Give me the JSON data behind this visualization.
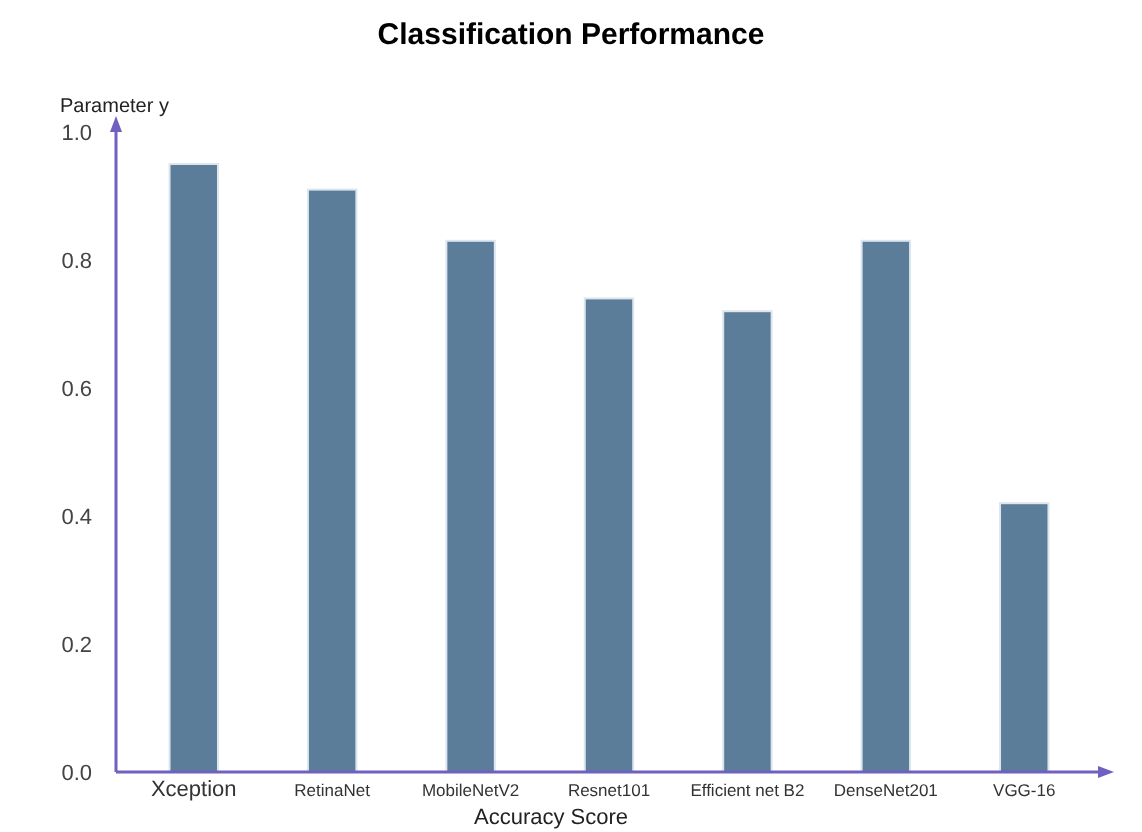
{
  "chart_data": {
    "type": "bar",
    "title": "Classification Performance",
    "xlabel": "Accuracy  Score",
    "ylabel": "Parameter y",
    "categories": [
      "Xception",
      "RetinaNet",
      "MobileNetV2",
      "Resnet101",
      "Efficient net B2",
      "DenseNet201",
      "VGG-16"
    ],
    "values": [
      0.95,
      0.91,
      0.83,
      0.74,
      0.72,
      0.83,
      0.42
    ],
    "color": "#5b7d99",
    "ylim": [
      0,
      1
    ],
    "yticks": [
      {
        "value": 0,
        "label": "0.0"
      },
      0.2,
      0.4,
      0.6,
      0.8,
      {
        "value": 1,
        "label": "1.0"
      }
    ],
    "grid": false
  }
}
